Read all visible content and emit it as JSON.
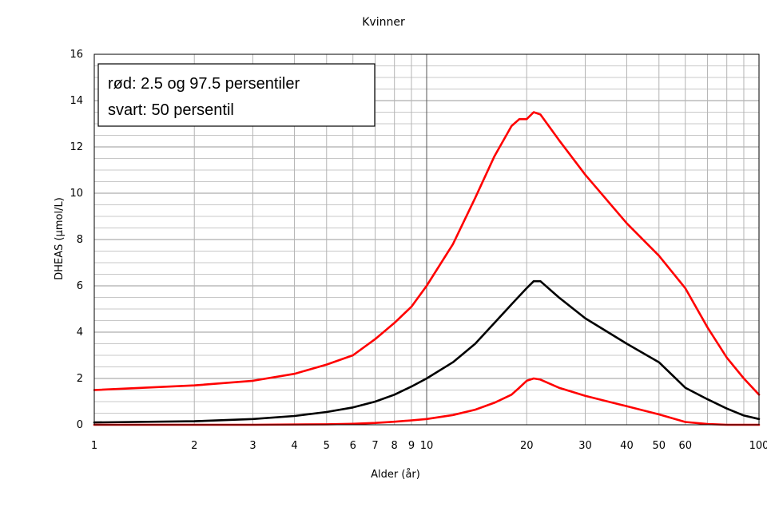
{
  "chart_data": {
    "type": "line",
    "title": "Kvinner",
    "xlabel": "Alder (år)",
    "ylabel": "DHEAS (µmol/L)",
    "x_scale": "log",
    "xlim": [
      1,
      100
    ],
    "ylim": [
      0,
      16
    ],
    "y_ticks": [
      0,
      2,
      4,
      6,
      8,
      10,
      12,
      14,
      16
    ],
    "x_ticks": [
      1,
      2,
      3,
      4,
      5,
      6,
      7,
      8,
      9,
      10,
      20,
      30,
      40,
      50,
      60,
      100
    ],
    "x_tick_labels": [
      "1",
      "2",
      "3",
      "4",
      "5",
      "6",
      "7",
      "8",
      "9",
      "10",
      "20",
      "30",
      "40",
      "50",
      "60",
      "100"
    ],
    "grid": true,
    "legend": {
      "placement": "top-left",
      "lines": [
        "rød: 2.5 og 97.5 persentiler",
        "svart: 50 persentil"
      ]
    },
    "colors": {
      "percentile_outer": "#ff0000",
      "median": "#000000"
    },
    "series": [
      {
        "color": "#ff0000",
        "x": [
          1,
          2,
          3,
          4,
          5,
          6,
          7,
          8,
          9,
          10,
          12,
          14,
          16,
          18,
          19,
          20,
          21,
          22,
          25,
          30,
          40,
          50,
          60,
          70,
          80,
          90,
          100
        ],
        "values": [
          1.5,
          1.7,
          1.9,
          2.2,
          2.6,
          3.0,
          3.7,
          4.4,
          5.1,
          6.0,
          7.8,
          9.8,
          11.6,
          12.9,
          13.2,
          13.2,
          13.5,
          13.4,
          12.3,
          10.8,
          8.7,
          7.3,
          5.9,
          4.2,
          2.9,
          2.0,
          1.3
        ]
      },
      {
        "color": "#000000",
        "x": [
          1,
          2,
          3,
          4,
          5,
          6,
          7,
          8,
          9,
          10,
          12,
          14,
          16,
          18,
          20,
          21,
          22,
          25,
          30,
          40,
          50,
          60,
          70,
          80,
          90,
          100
        ],
        "values": [
          0.1,
          0.15,
          0.25,
          0.38,
          0.55,
          0.75,
          1.0,
          1.3,
          1.65,
          2.0,
          2.7,
          3.5,
          4.4,
          5.2,
          5.9,
          6.2,
          6.2,
          5.5,
          4.6,
          3.5,
          2.7,
          1.6,
          1.1,
          0.7,
          0.4,
          0.25
        ]
      },
      {
        "color": "#ff0000",
        "x": [
          1,
          3,
          5,
          6,
          7,
          8,
          9,
          10,
          12,
          14,
          16,
          18,
          19,
          20,
          21,
          22,
          25,
          30,
          40,
          50,
          60,
          70,
          80,
          100
        ],
        "values": [
          0.0,
          0.0,
          0.02,
          0.04,
          0.08,
          0.13,
          0.19,
          0.25,
          0.42,
          0.65,
          0.95,
          1.3,
          1.6,
          1.9,
          2.0,
          1.95,
          1.6,
          1.25,
          0.8,
          0.45,
          0.12,
          0.03,
          0.0,
          0.0
        ]
      }
    ]
  }
}
